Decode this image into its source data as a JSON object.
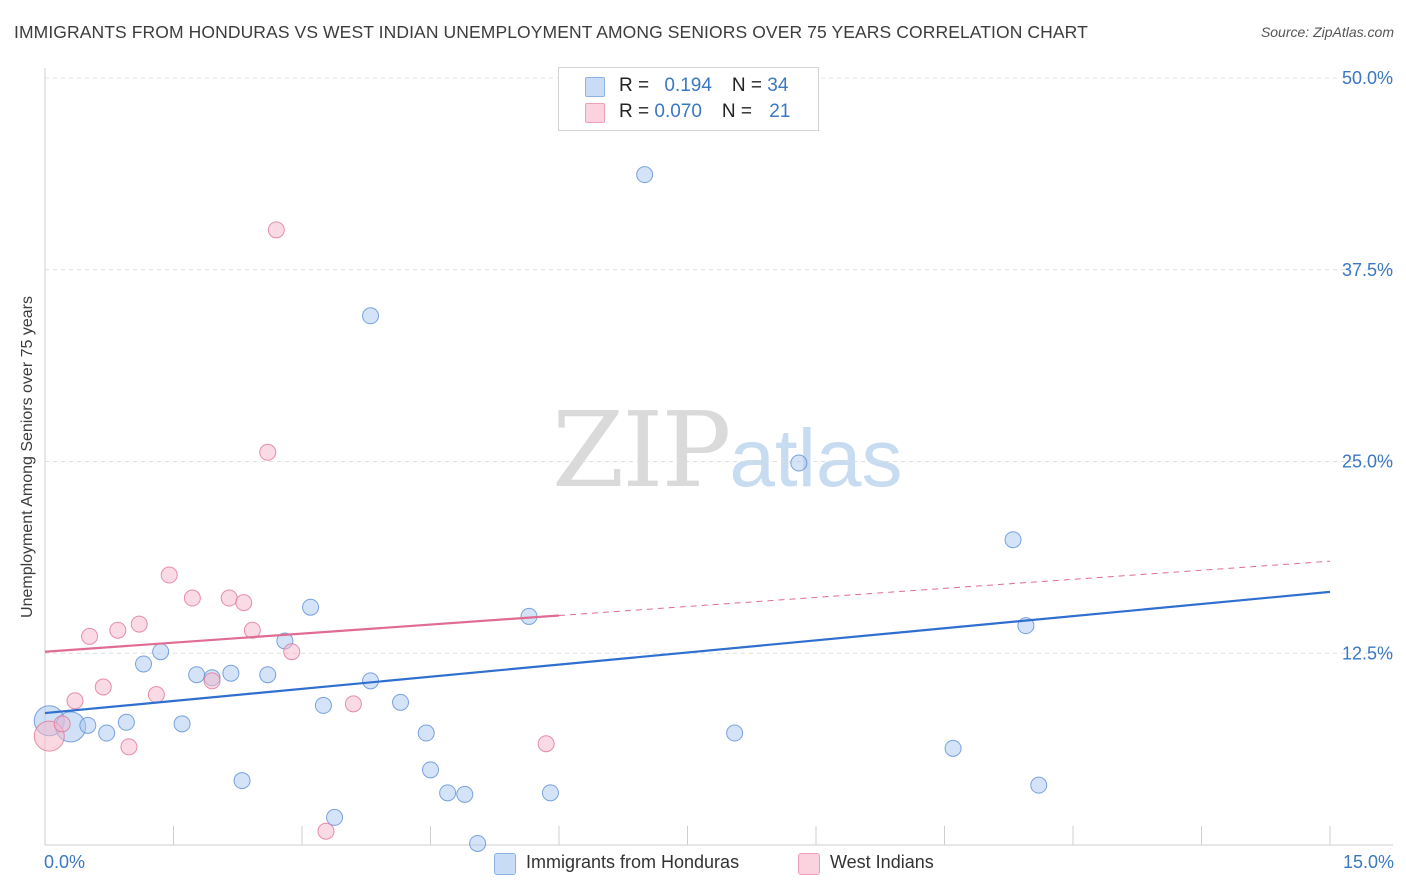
{
  "title": "IMMIGRANTS FROM HONDURAS VS WEST INDIAN UNEMPLOYMENT AMONG SENIORS OVER 75 YEARS CORRELATION CHART",
  "source": "Source: ZipAtlas.com",
  "watermark": {
    "zip": "ZIP",
    "atlas": "atlas"
  },
  "legend": {
    "rows": [
      {
        "r_label": "R = ",
        "r_value": "0.194",
        "n_label": "N = ",
        "n_value": "34",
        "color": "#a9c8f0"
      },
      {
        "r_label": "R = ",
        "r_value": "0.070",
        "n_label": "N = ",
        "n_value": "21",
        "color": "#f6b8cb"
      }
    ]
  },
  "bottom_legend": {
    "series1": "Immigrants from Honduras",
    "series2": "West Indians"
  },
  "x_tick_labels": {
    "left": "0.0%",
    "right": "15.0%"
  },
  "chart_data": {
    "type": "scatter",
    "title": "IMMIGRANTS FROM HONDURAS VS WEST INDIAN UNEMPLOYMENT AMONG SENIORS OVER 75 YEARS CORRELATION CHART",
    "xlabel": "",
    "ylabel": "Unemployment Among Seniors over 75 years",
    "xlim": [
      0,
      15
    ],
    "ylim": [
      0,
      50
    ],
    "y_ticks": [
      12.5,
      25.0,
      37.5,
      50.0
    ],
    "y_tick_labels": [
      "12.5%",
      "25.0%",
      "37.5%",
      "50.0%"
    ],
    "grid": "horizontal dashed",
    "legend_position": "top-center",
    "series": [
      {
        "name": "Immigrants from Honduras",
        "color": "#a9c8f0",
        "stroke": "#5b8fd6",
        "R": 0.194,
        "N": 34,
        "trend": {
          "x": [
            0,
            15
          ],
          "y": [
            8.6,
            16.5
          ],
          "dashed_from": null
        },
        "points": [
          {
            "x": 0.05,
            "y": 8.1,
            "big": true
          },
          {
            "x": 0.3,
            "y": 7.7,
            "big": true
          },
          {
            "x": 0.5,
            "y": 7.8
          },
          {
            "x": 0.72,
            "y": 7.3
          },
          {
            "x": 0.95,
            "y": 8.0
          },
          {
            "x": 1.15,
            "y": 11.8
          },
          {
            "x": 1.35,
            "y": 12.6
          },
          {
            "x": 1.6,
            "y": 7.9
          },
          {
            "x": 1.77,
            "y": 11.1
          },
          {
            "x": 1.95,
            "y": 10.9
          },
          {
            "x": 2.17,
            "y": 11.2
          },
          {
            "x": 2.3,
            "y": 4.2
          },
          {
            "x": 2.6,
            "y": 11.1
          },
          {
            "x": 2.8,
            "y": 13.3
          },
          {
            "x": 3.1,
            "y": 15.5
          },
          {
            "x": 3.25,
            "y": 9.1
          },
          {
            "x": 3.8,
            "y": 10.7
          },
          {
            "x": 3.38,
            "y": 1.8
          },
          {
            "x": 3.8,
            "y": 34.5
          },
          {
            "x": 4.15,
            "y": 9.3
          },
          {
            "x": 4.45,
            "y": 7.3
          },
          {
            "x": 4.5,
            "y": 4.9
          },
          {
            "x": 4.7,
            "y": 3.4
          },
          {
            "x": 4.9,
            "y": 3.3
          },
          {
            "x": 5.05,
            "y": 0.1
          },
          {
            "x": 5.65,
            "y": 14.9
          },
          {
            "x": 5.9,
            "y": 3.4
          },
          {
            "x": 7.0,
            "y": 43.7
          },
          {
            "x": 8.05,
            "y": 7.3
          },
          {
            "x": 8.8,
            "y": 24.9
          },
          {
            "x": 10.6,
            "y": 6.3
          },
          {
            "x": 11.3,
            "y": 19.9
          },
          {
            "x": 11.45,
            "y": 14.3
          },
          {
            "x": 11.6,
            "y": 3.9
          }
        ]
      },
      {
        "name": "West Indians",
        "color": "#f6b8cb",
        "stroke": "#e07597",
        "R": 0.07,
        "N": 21,
        "trend": {
          "x": [
            0,
            15
          ],
          "y": [
            12.6,
            18.5
          ],
          "dashed_from": 6.0
        },
        "points": [
          {
            "x": 0.05,
            "y": 7.1,
            "big": true
          },
          {
            "x": 0.2,
            "y": 7.9
          },
          {
            "x": 0.35,
            "y": 9.4
          },
          {
            "x": 0.52,
            "y": 13.6
          },
          {
            "x": 0.68,
            "y": 10.3
          },
          {
            "x": 0.85,
            "y": 14.0
          },
          {
            "x": 0.98,
            "y": 6.4
          },
          {
            "x": 1.1,
            "y": 14.4
          },
          {
            "x": 1.3,
            "y": 9.8
          },
          {
            "x": 1.45,
            "y": 17.6
          },
          {
            "x": 1.72,
            "y": 16.1
          },
          {
            "x": 1.95,
            "y": 10.7
          },
          {
            "x": 2.15,
            "y": 16.1
          },
          {
            "x": 2.32,
            "y": 15.8
          },
          {
            "x": 2.42,
            "y": 14.0
          },
          {
            "x": 2.6,
            "y": 25.6
          },
          {
            "x": 2.7,
            "y": 40.1
          },
          {
            "x": 2.88,
            "y": 12.6
          },
          {
            "x": 3.28,
            "y": 0.9
          },
          {
            "x": 3.6,
            "y": 9.2
          },
          {
            "x": 5.85,
            "y": 6.6
          }
        ]
      }
    ]
  }
}
